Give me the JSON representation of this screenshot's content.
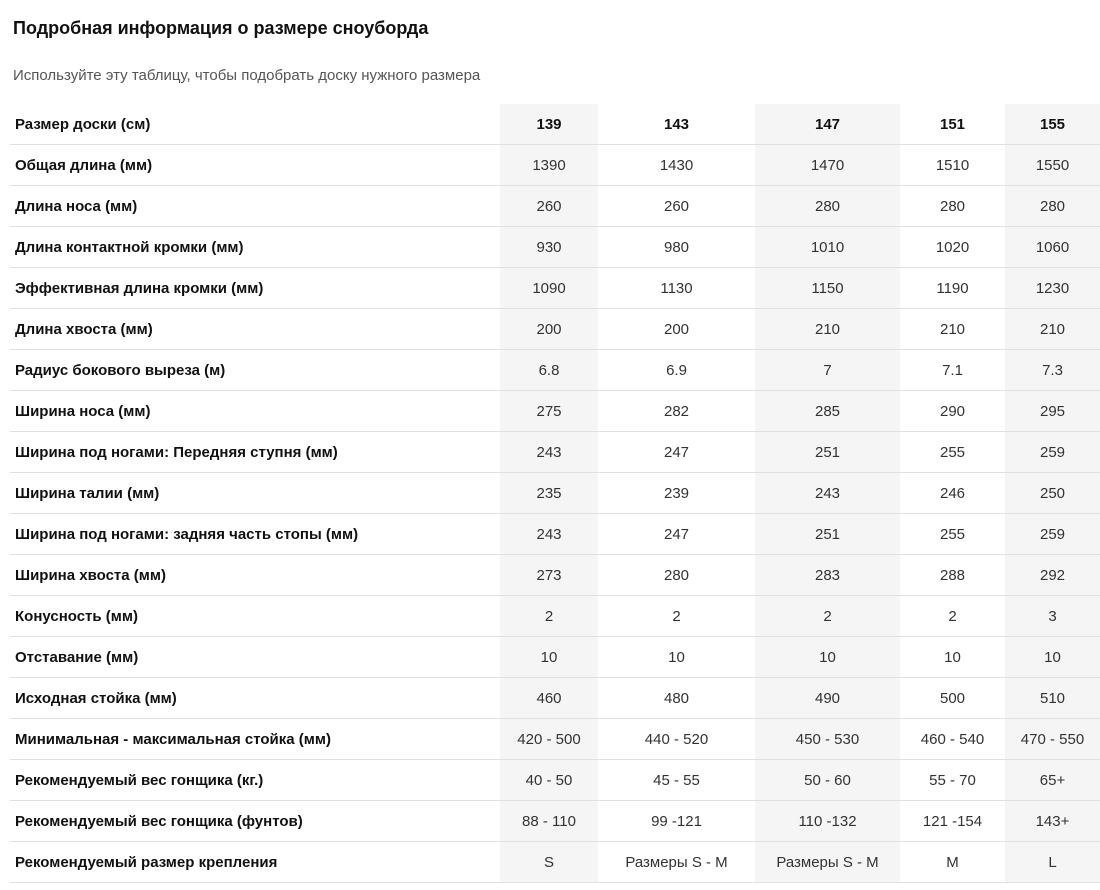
{
  "page": {
    "title": "Подробная информация о размере сноуборда",
    "subtitle": "Используйте эту таблицу, чтобы подобрать доску нужного размера"
  },
  "table": {
    "header": {
      "label": "Размер доски (см)",
      "sizes": [
        "139",
        "143",
        "147",
        "151",
        "155"
      ]
    },
    "rows": [
      {
        "label": "Общая длина (мм)",
        "values": [
          "1390",
          "1430",
          "1470",
          "1510",
          "1550"
        ]
      },
      {
        "label": "Длина носа (мм)",
        "values": [
          "260",
          "260",
          "280",
          "280",
          "280"
        ]
      },
      {
        "label": "Длина контактной кромки (мм)",
        "values": [
          "930",
          "980",
          "1010",
          "1020",
          "1060"
        ]
      },
      {
        "label": "Эффективная длина кромки (мм)",
        "values": [
          "1090",
          "1130",
          "1150",
          "1190",
          "1230"
        ]
      },
      {
        "label": "Длина хвоста (мм)",
        "values": [
          "200",
          "200",
          "210",
          "210",
          "210"
        ]
      },
      {
        "label": "Радиус бокового выреза (м)",
        "values": [
          "6.8",
          "6.9",
          "7",
          "7.1",
          "7.3"
        ]
      },
      {
        "label": "Ширина носа (мм)",
        "values": [
          "275",
          "282",
          "285",
          "290",
          "295"
        ]
      },
      {
        "label": "Ширина под ногами: Передняя ступня (мм)",
        "values": [
          "243",
          "247",
          "251",
          "255",
          "259"
        ]
      },
      {
        "label": "Ширина талии (мм)",
        "values": [
          "235",
          "239",
          "243",
          "246",
          "250"
        ]
      },
      {
        "label": "Ширина под ногами: задняя часть стопы (мм)",
        "values": [
          "243",
          "247",
          "251",
          "255",
          "259"
        ]
      },
      {
        "label": "Ширина хвоста (мм)",
        "values": [
          "273",
          "280",
          "283",
          "288",
          "292"
        ]
      },
      {
        "label": "Конусность (мм)",
        "values": [
          "2",
          "2",
          "2",
          "2",
          "3"
        ]
      },
      {
        "label": "Отставание (мм)",
        "values": [
          "10",
          "10",
          "10",
          "10",
          "10"
        ]
      },
      {
        "label": "Исходная стойка (мм)",
        "values": [
          "460",
          "480",
          "490",
          "500",
          "510"
        ]
      },
      {
        "label": "Минимальная - максимальная стойка (мм)",
        "values": [
          "420 - 500",
          "440 - 520",
          "450 - 530",
          "460 - 540",
          "470 - 550"
        ]
      },
      {
        "label": "Рекомендуемый вес гонщика (кг.)",
        "values": [
          "40 - 50",
          "45 - 55",
          "50 - 60",
          "55 - 70",
          "65+"
        ]
      },
      {
        "label": "Рекомендуемый вес гонщика (фунтов)",
        "values": [
          "88 - 110",
          "99 -121",
          "110 -132",
          "121 -154",
          "143+"
        ]
      },
      {
        "label": "Рекомендуемый размер крепления",
        "values": [
          "S",
          "Размеры S - M",
          "Размеры S - M",
          "M",
          "L"
        ]
      }
    ],
    "shaded_column_indexes": [
      0,
      2,
      4
    ]
  },
  "colors": {
    "column_shade": "#f5f5f5",
    "row_border": "#e0e0e0",
    "label_text": "#111111",
    "value_text": "#333333",
    "subtitle_text": "#555555"
  }
}
